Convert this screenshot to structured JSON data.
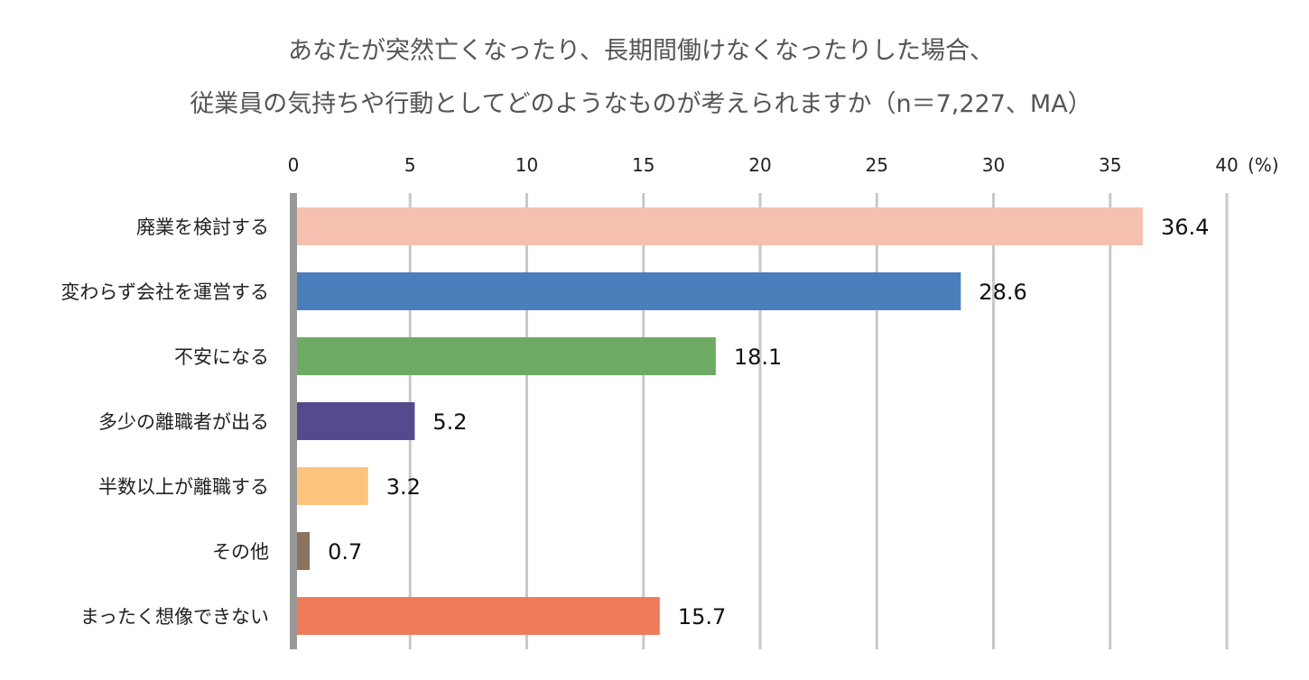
{
  "chart_data": {
    "type": "bar",
    "orientation": "horizontal",
    "title_lines": [
      "あなたが突然亡くなったり、長期間働けなくなったりした場合、",
      "従業員の気持ちや行動としてどのようなものが考えられますか（n＝7,227、MA）"
    ],
    "unit_label": "(%)",
    "xlim": [
      0,
      40
    ],
    "ticks": [
      "0",
      "5",
      "10",
      "15",
      "20",
      "25",
      "30",
      "35",
      "40"
    ],
    "grid": true,
    "categories": [
      "廃業を検討する",
      "変わらず会社を運営する",
      "不安になる",
      "多少の離職者が出る",
      "半数以上が離職する",
      "その他",
      "まったく想像できない"
    ],
    "values": [
      36.4,
      28.6,
      18.1,
      5.2,
      3.2,
      0.7,
      15.7
    ],
    "value_labels": [
      "36.4",
      "28.6",
      "18.1",
      "5.2",
      "3.2",
      "0.7",
      "15.7"
    ],
    "colors": [
      "#F5C0B0",
      "#4A7FBC",
      "#6DAA63",
      "#534B8E",
      "#FDC47E",
      "#8B7360",
      "#EF7B5B"
    ]
  }
}
